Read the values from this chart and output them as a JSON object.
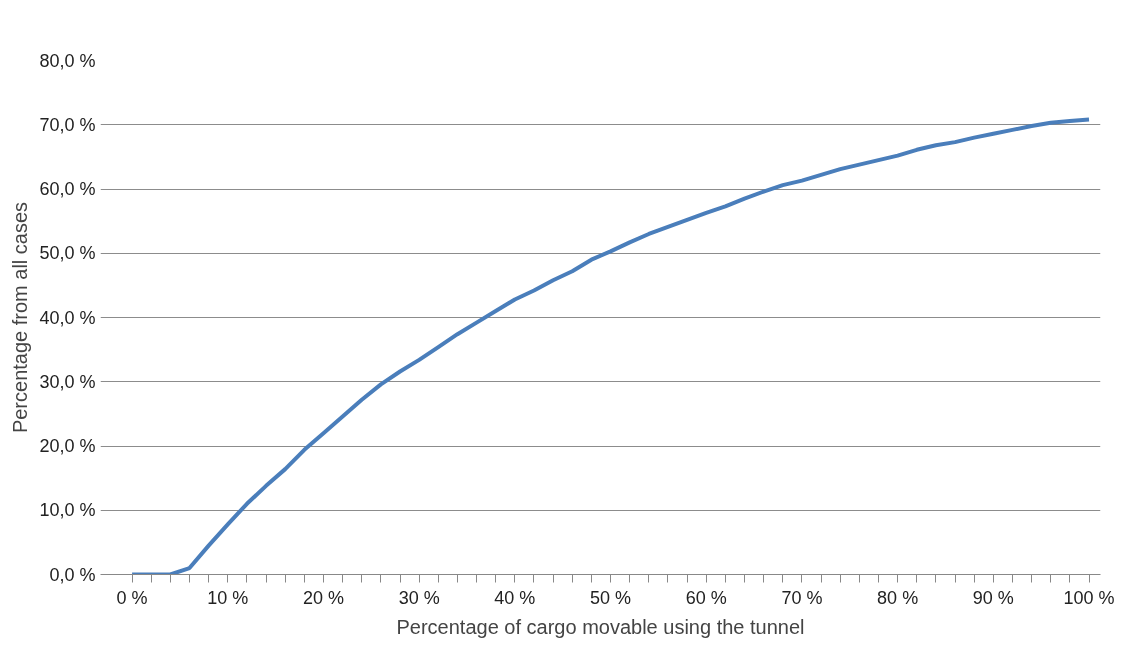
{
  "chart_data": {
    "type": "line",
    "xlabel": "Percentage of cargo movable using the tunnel",
    "ylabel": "Percentage from all cases",
    "x": [
      0,
      2,
      4,
      6,
      8,
      10,
      12,
      14,
      16,
      18,
      20,
      22,
      24,
      26,
      28,
      30,
      32,
      34,
      36,
      38,
      40,
      42,
      44,
      46,
      48,
      50,
      52,
      54,
      56,
      58,
      60,
      62,
      64,
      66,
      68,
      70,
      72,
      74,
      76,
      78,
      80,
      82,
      84,
      86,
      88,
      90,
      92,
      94,
      96,
      98,
      100
    ],
    "series": [
      {
        "color": "#4a7ebb",
        "values": [
          0,
          0,
          0,
          1,
          4.5,
          7.8,
          11,
          13.8,
          16.4,
          19.4,
          22,
          24.6,
          27.2,
          29.6,
          31.6,
          33.4,
          35.4,
          37.4,
          39.2,
          41,
          42.8,
          44.2,
          45.8,
          47.2,
          49,
          50.3,
          51.7,
          53,
          54.1,
          55.2,
          56.3,
          57.3,
          58.5,
          59.6,
          60.6,
          61.3,
          62.2,
          63.1,
          63.8,
          64.5,
          65.2,
          66.1,
          66.8,
          67.3,
          68,
          68.6,
          69.2,
          69.8,
          70.3,
          70.6,
          70.8
        ]
      }
    ],
    "xlim": [
      -3.3,
      101.2
    ],
    "ylim": [
      0,
      80
    ],
    "xticks": [
      {
        "value": 0,
        "label": "0 %"
      },
      {
        "value": 2,
        "label": null
      },
      {
        "value": 4,
        "label": null
      },
      {
        "value": 6,
        "label": null
      },
      {
        "value": 8,
        "label": null
      },
      {
        "value": 10,
        "label": "10 %"
      },
      {
        "value": 12,
        "label": null
      },
      {
        "value": 14,
        "label": null
      },
      {
        "value": 16,
        "label": null
      },
      {
        "value": 18,
        "label": null
      },
      {
        "value": 20,
        "label": "20 %"
      },
      {
        "value": 22,
        "label": null
      },
      {
        "value": 24,
        "label": null
      },
      {
        "value": 26,
        "label": null
      },
      {
        "value": 28,
        "label": null
      },
      {
        "value": 30,
        "label": "30 %"
      },
      {
        "value": 32,
        "label": null
      },
      {
        "value": 34,
        "label": null
      },
      {
        "value": 36,
        "label": null
      },
      {
        "value": 38,
        "label": null
      },
      {
        "value": 40,
        "label": "40 %"
      },
      {
        "value": 42,
        "label": null
      },
      {
        "value": 44,
        "label": null
      },
      {
        "value": 46,
        "label": null
      },
      {
        "value": 48,
        "label": null
      },
      {
        "value": 50,
        "label": "50 %"
      },
      {
        "value": 52,
        "label": null
      },
      {
        "value": 54,
        "label": null
      },
      {
        "value": 56,
        "label": null
      },
      {
        "value": 58,
        "label": null
      },
      {
        "value": 60,
        "label": "60 %"
      },
      {
        "value": 62,
        "label": null
      },
      {
        "value": 64,
        "label": null
      },
      {
        "value": 66,
        "label": null
      },
      {
        "value": 68,
        "label": null
      },
      {
        "value": 70,
        "label": "70 %"
      },
      {
        "value": 72,
        "label": null
      },
      {
        "value": 74,
        "label": null
      },
      {
        "value": 76,
        "label": null
      },
      {
        "value": 78,
        "label": null
      },
      {
        "value": 80,
        "label": "80 %"
      },
      {
        "value": 82,
        "label": null
      },
      {
        "value": 84,
        "label": null
      },
      {
        "value": 86,
        "label": null
      },
      {
        "value": 88,
        "label": null
      },
      {
        "value": 90,
        "label": "90 %"
      },
      {
        "value": 92,
        "label": null
      },
      {
        "value": 94,
        "label": null
      },
      {
        "value": 96,
        "label": null
      },
      {
        "value": 98,
        "label": null
      },
      {
        "value": 100,
        "label": "100 %"
      }
    ],
    "yticks": [
      {
        "value": 0,
        "label": "0,0 %"
      },
      {
        "value": 10,
        "label": "10,0 %"
      },
      {
        "value": 20,
        "label": "20,0 %"
      },
      {
        "value": 30,
        "label": "30,0 %"
      },
      {
        "value": 40,
        "label": "40,0 %"
      },
      {
        "value": 50,
        "label": "50,0 %"
      },
      {
        "value": 60,
        "label": "60,0 %"
      },
      {
        "value": 70,
        "label": "70,0 %"
      },
      {
        "value": 80,
        "label": "80,0 %"
      }
    ],
    "grid": "y",
    "marker": "none",
    "line_style": "solid"
  }
}
